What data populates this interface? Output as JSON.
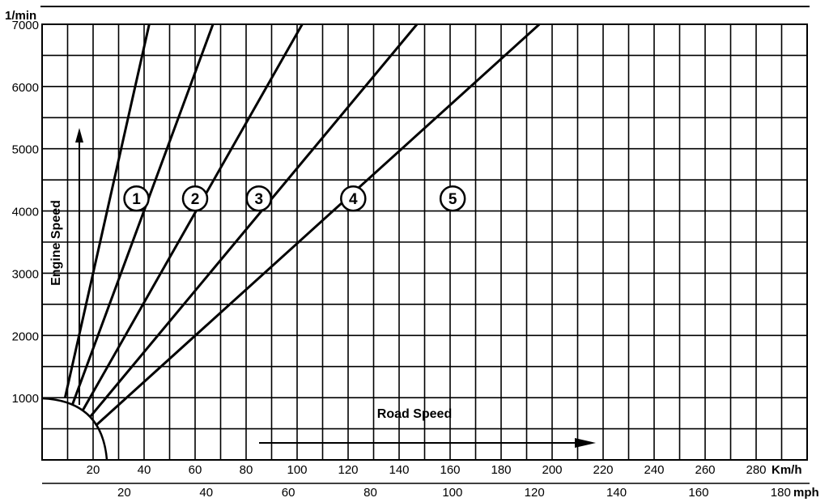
{
  "chart_data": {
    "type": "line",
    "title": "",
    "ylabel": "Engine Speed",
    "xlabel": "Road Speed",
    "y_unit": "1/min",
    "x_unit": "Km/h",
    "x2_unit": "mph",
    "ylim": [
      0,
      7000
    ],
    "xlim": [
      0,
      300
    ],
    "grid": true,
    "y_ticks": [
      "1000",
      "2000",
      "3000",
      "4000",
      "5000",
      "6000",
      "7000"
    ],
    "x_ticks": [
      "20",
      "40",
      "60",
      "80",
      "100",
      "120",
      "140",
      "160",
      "180",
      "200",
      "220",
      "240",
      "260",
      "280"
    ],
    "x2_ticks": [
      "20",
      "40",
      "60",
      "80",
      "100",
      "120",
      "140",
      "160",
      "180"
    ],
    "series": [
      {
        "name": "1",
        "x": [
          9,
          42
        ],
        "y": [
          1000,
          7000
        ]
      },
      {
        "name": "2",
        "x": [
          12,
          67
        ],
        "y": [
          900,
          7000
        ]
      },
      {
        "name": "3",
        "x": [
          16,
          102
        ],
        "y": [
          800,
          7000
        ]
      },
      {
        "name": "4",
        "x": [
          19,
          147
        ],
        "y": [
          700,
          7000
        ]
      },
      {
        "name": "5",
        "x": [
          21,
          195
        ],
        "y": [
          550,
          7000
        ]
      }
    ],
    "label_positions_data": [
      {
        "name": "1",
        "x": 37,
        "y": 4200
      },
      {
        "name": "2",
        "x": 60,
        "y": 4200
      },
      {
        "name": "3",
        "x": 85,
        "y": 4200
      },
      {
        "name": "4",
        "x": 122,
        "y": 4200
      },
      {
        "name": "5",
        "x": 161,
        "y": 4200
      }
    ]
  }
}
